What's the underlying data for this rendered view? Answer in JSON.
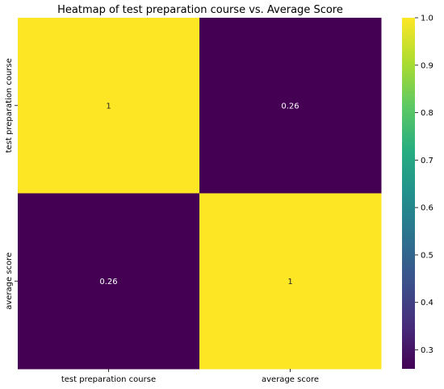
{
  "chart_data": {
    "type": "heatmap",
    "title": "Heatmap of test preparation course vs. Average Score",
    "xlabel": "",
    "ylabel": "",
    "x_categories": [
      "test preparation course",
      "average score"
    ],
    "y_categories": [
      "test preparation course",
      "average score"
    ],
    "values": [
      [
        1,
        0.26
      ],
      [
        0.26,
        1
      ]
    ],
    "value_labels": [
      [
        "1",
        "0.26"
      ],
      [
        "0.26",
        "1"
      ]
    ],
    "colormap": "viridis",
    "color_range": [
      0.26,
      1.0
    ],
    "colorbar_ticks": [
      0.3,
      0.4,
      0.5,
      0.6,
      0.7,
      0.8,
      0.9,
      1.0
    ],
    "colorbar_tick_labels": [
      "0.3",
      "0.4",
      "0.5",
      "0.6",
      "0.7",
      "0.8",
      "0.9",
      "1.0"
    ],
    "colors": {
      "min": "#440154",
      "max": "#fde725",
      "text_on_dark": "#ffffff",
      "text_on_light": "#262626"
    }
  }
}
